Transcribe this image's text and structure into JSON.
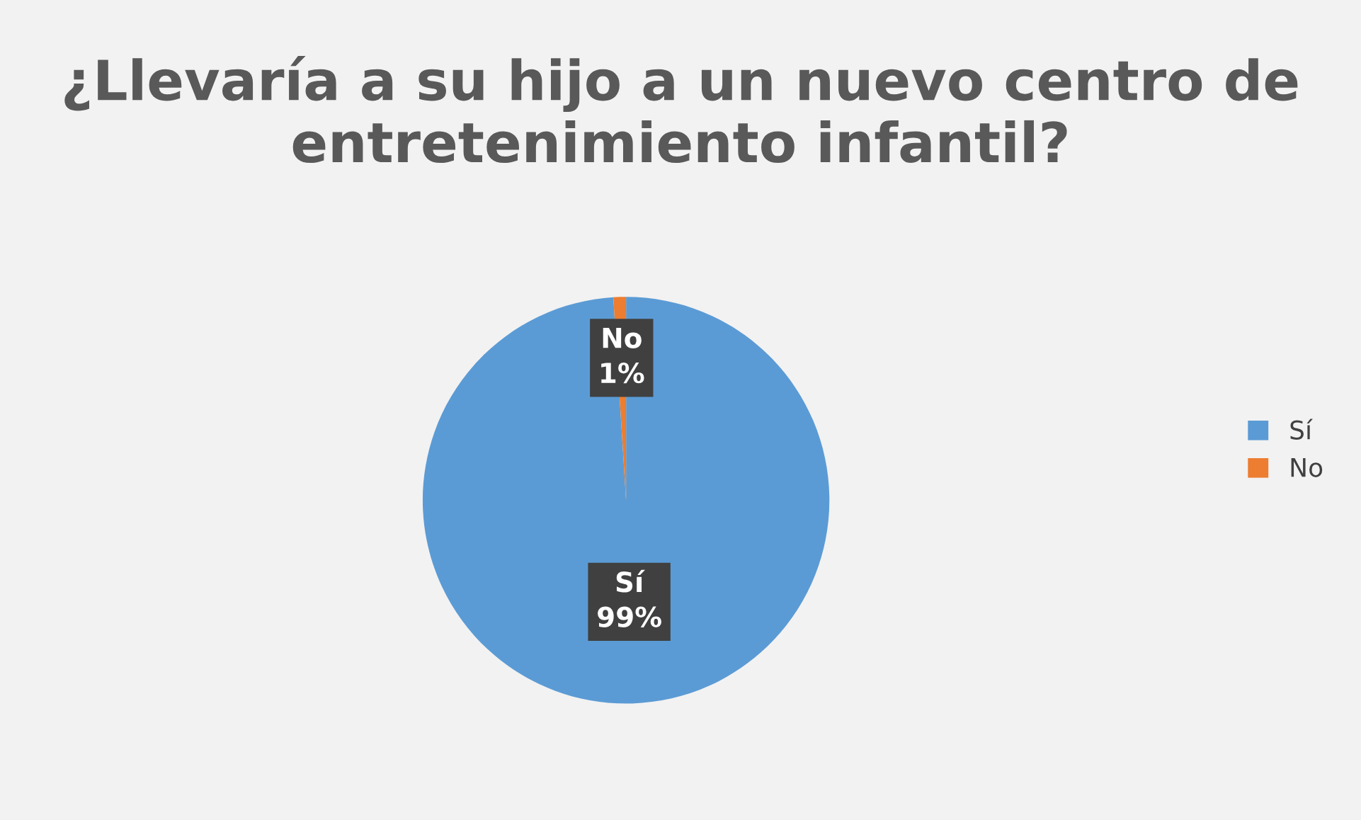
{
  "chart_data": {
    "type": "pie",
    "title": "¿Llevaría a su hijo a un nuevo centro de entretenimiento infantil?",
    "categories": [
      "Sí",
      "No"
    ],
    "values": [
      99,
      1
    ],
    "value_labels": [
      "99%",
      "1%"
    ],
    "colors": [
      "#5b9bd5",
      "#ed7d31"
    ],
    "legend": "right"
  }
}
